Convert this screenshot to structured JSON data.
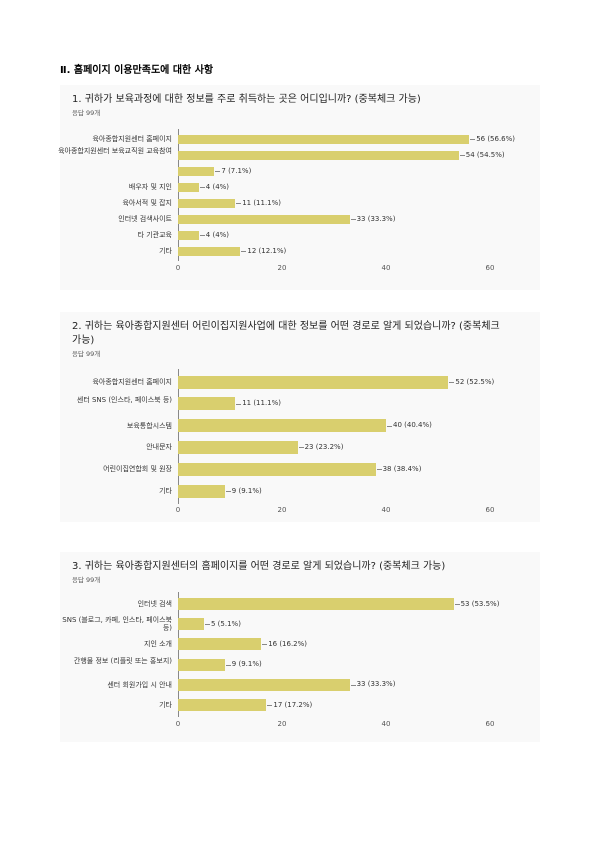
{
  "section_title": "Ⅱ. 홈페이지 이용만족도에 대한 사항",
  "chart_data": [
    {
      "type": "bar",
      "orientation": "horizontal",
      "title": "1. 귀하가 보육과정에 대한 정보를 주로 취득하는 곳은 어디입니까? (중복체크 가능)",
      "subtitle": "응답 99개",
      "categories": [
        "육아종합지원센터 홈페이지",
        "육아종합지원센터 보육교직원 교육참여",
        null,
        "배우자 및 지인",
        "육아서적 및 잡지",
        "인터넷 검색사이트",
        "타 기관교육",
        "기타"
      ],
      "values": [
        56,
        54,
        7,
        4,
        11,
        33,
        4,
        12
      ],
      "value_labels": [
        "56 (56.6%)",
        "54 (54.5%)",
        "7 (7.1%)",
        "4 (4%)",
        "11 (11.1%)",
        "33 (33.3%)",
        "4 (4%)",
        "12 (12.1%)"
      ],
      "color": "#d9cf6e",
      "xlim": [
        0,
        65
      ],
      "xticks": [
        0,
        20,
        40,
        60
      ]
    },
    {
      "type": "bar",
      "orientation": "horizontal",
      "title": "2. 귀하는 육아종합지원센터 어린이집지원사업에 대한 정보를 어떤 경로로 알게 되었습니까? (중복체크 가능)",
      "subtitle": "응답 99개",
      "categories": [
        "육아종합지원센터 홈페이지",
        "센터 SNS (인스타, 페이스북 등)",
        "보육통합시스템",
        "안내문자",
        "어린이집연합회 및 원장",
        "기타"
      ],
      "values": [
        52,
        11,
        40,
        23,
        38,
        9
      ],
      "value_labels": [
        "52 (52.5%)",
        "11 (11.1%)",
        "40 (40.4%)",
        "23 (23.2%)",
        "38 (38.4%)",
        "9 (9.1%)"
      ],
      "color": "#d9cf6e",
      "xlim": [
        0,
        65
      ],
      "xticks": [
        0,
        20,
        40,
        60
      ]
    },
    {
      "type": "bar",
      "orientation": "horizontal",
      "title": "3. 귀하는 육아종합지원센터의 홈페이지를 어떤 경로로 알게 되었습니까? (중복체크 가능)",
      "subtitle": "응답 99개",
      "categories": [
        "인터넷 검색",
        "SNS (블로그, 카페, 인스타, 페이스북 등)",
        "지인 소개",
        "간행물 정보 (리플릿 또는 홍보지)",
        "센터 회원가입 시 안내",
        "기타"
      ],
      "values": [
        53,
        5,
        16,
        9,
        33,
        17
      ],
      "value_labels": [
        "53 (53.5%)",
        "5 (5.1%)",
        "16 (16.2%)",
        "9 (9.1%)",
        "33 (33.3%)",
        "17 (17.2%)"
      ],
      "color": "#d9cf6e",
      "xlim": [
        0,
        65
      ],
      "xticks": [
        0,
        20,
        40,
        60
      ]
    }
  ]
}
